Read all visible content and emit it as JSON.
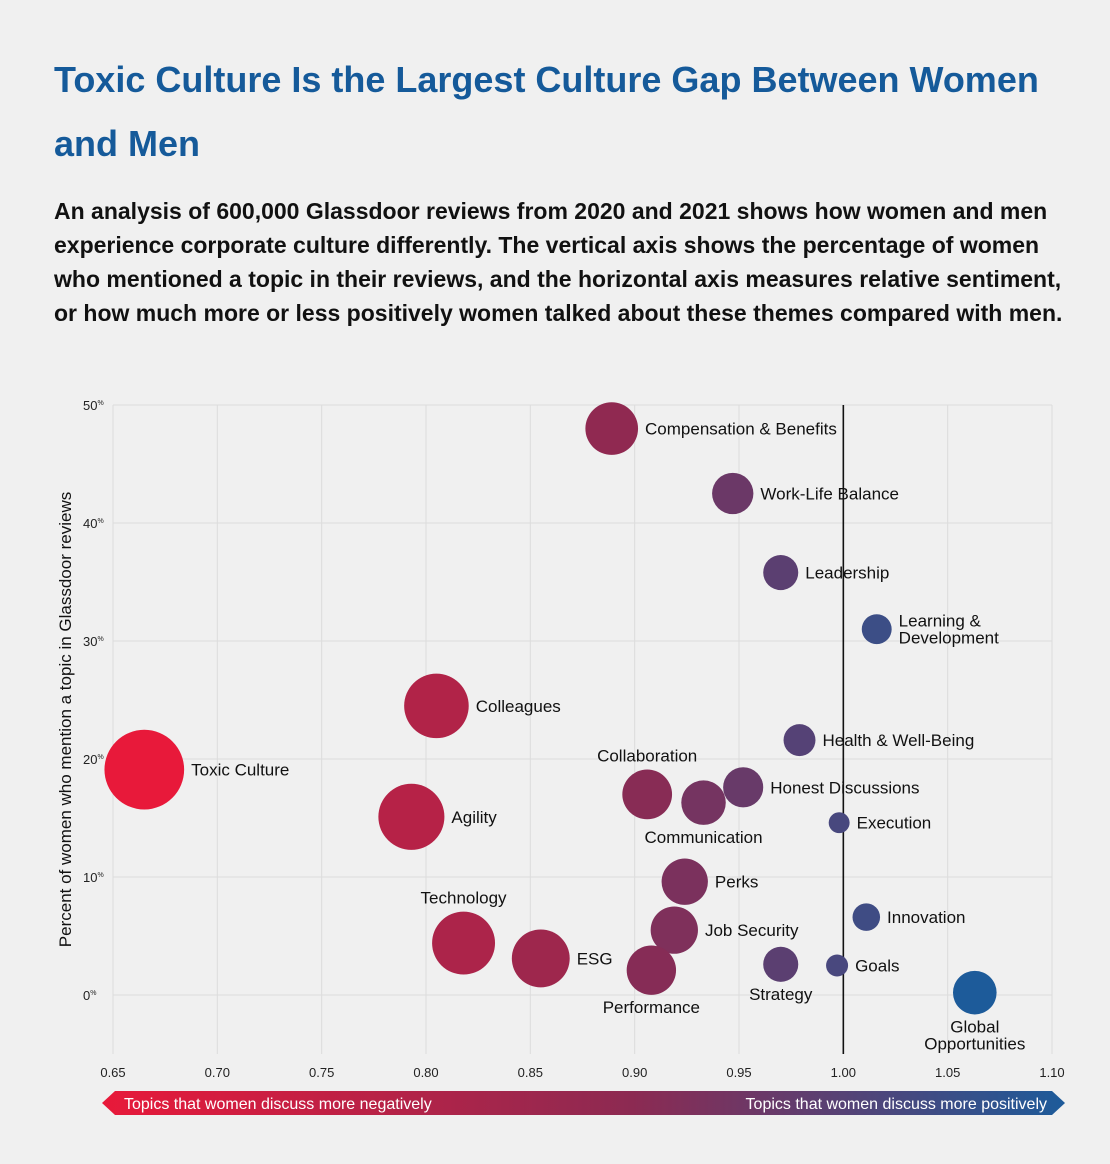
{
  "title": "Toxic Culture Is the Largest Culture Gap Between Women and Men",
  "subtitle": "An analysis of 600,000 Glassdoor reviews from 2020 and 2021 shows how women and men experience corporate culture differently. The vertical axis shows the percentage of women who mentioned a topic in their reviews, and the horizontal axis measures relative sentiment, or how much more or less positively women talked about these themes compared with men.",
  "chart_data": {
    "type": "scatter",
    "encoding": "bubble",
    "ylabel": "Percent of women who mention a topic in Glassdoor reviews",
    "xlim": [
      0.65,
      1.1
    ],
    "ylim": [
      -5,
      50
    ],
    "x_ticks": [
      0.65,
      0.7,
      0.75,
      0.8,
      0.85,
      0.9,
      0.95,
      1.0,
      1.05,
      1.1
    ],
    "x_tick_labels": [
      "0.65",
      "0.70",
      "0.75",
      "0.80",
      "0.85",
      "0.90",
      "0.95",
      "1.00",
      "1.05",
      "1.10"
    ],
    "y_ticks": [
      0,
      10,
      20,
      30,
      40,
      50
    ],
    "y_tick_labels": [
      "0",
      "10",
      "20",
      "30",
      "40",
      "50"
    ],
    "y_tick_unit": "%",
    "reference_line_x": 1.0,
    "grid": true,
    "arrow_left_label": "Topics that women discuss more negatively",
    "arrow_right_label": "Topics that women discuss more positively",
    "colors": {
      "negative": "#e8193a",
      "middle": "#8c2a52",
      "positive": "#1d5b9a",
      "title": "#155a9a"
    },
    "points": [
      {
        "label": "Compensation & Benefits",
        "x": 0.889,
        "y": 48.0,
        "gap": 0.111,
        "anchor": "right"
      },
      {
        "label": "Work-Life Balance",
        "x": 0.947,
        "y": 42.5,
        "gap": 0.053,
        "anchor": "right"
      },
      {
        "label": "Leadership",
        "x": 0.97,
        "y": 35.8,
        "gap": 0.03,
        "anchor": "right"
      },
      {
        "label": "Learning & Development",
        "lines": [
          "Learning &",
          "Development"
        ],
        "x": 1.016,
        "y": 31.0,
        "gap": 0.016,
        "anchor": "right"
      },
      {
        "label": "Colleagues",
        "x": 0.805,
        "y": 24.5,
        "gap": 0.195,
        "anchor": "right"
      },
      {
        "label": "Health & Well-Being",
        "x": 0.979,
        "y": 21.6,
        "gap": 0.021,
        "anchor": "right"
      },
      {
        "label": "Toxic Culture",
        "x": 0.665,
        "y": 19.1,
        "gap": 0.335,
        "anchor": "right"
      },
      {
        "label": "Collaboration",
        "x": 0.906,
        "y": 17.0,
        "gap": 0.094,
        "anchor": "above"
      },
      {
        "label": "Honest Discussions",
        "x": 0.952,
        "y": 17.6,
        "gap": 0.048,
        "anchor": "right"
      },
      {
        "label": "Communication",
        "x": 0.933,
        "y": 16.3,
        "gap": 0.067,
        "anchor": "below"
      },
      {
        "label": "Agility",
        "x": 0.793,
        "y": 15.1,
        "gap": 0.207,
        "anchor": "right"
      },
      {
        "label": "Execution",
        "x": 0.998,
        "y": 14.6,
        "gap": 0.002,
        "anchor": "right"
      },
      {
        "label": "Perks",
        "x": 0.924,
        "y": 9.6,
        "gap": 0.076,
        "anchor": "right"
      },
      {
        "label": "Innovation",
        "x": 1.011,
        "y": 6.6,
        "gap": 0.011,
        "anchor": "right"
      },
      {
        "label": "Technology",
        "x": 0.818,
        "y": 4.4,
        "gap": 0.182,
        "anchor": "above"
      },
      {
        "label": "Job Security",
        "x": 0.919,
        "y": 5.5,
        "gap": 0.081,
        "anchor": "right"
      },
      {
        "label": "ESG",
        "x": 0.855,
        "y": 3.1,
        "gap": 0.145,
        "anchor": "right"
      },
      {
        "label": "Strategy",
        "x": 0.97,
        "y": 2.6,
        "gap": 0.03,
        "anchor": "below"
      },
      {
        "label": "Goals",
        "x": 0.997,
        "y": 2.5,
        "gap": 0.003,
        "anchor": "right"
      },
      {
        "label": "Performance",
        "x": 0.908,
        "y": 2.1,
        "gap": 0.092,
        "anchor": "below"
      },
      {
        "label": "Global Opportunities",
        "lines": [
          "Global",
          "Opportunities"
        ],
        "x": 1.063,
        "y": 0.2,
        "gap": 0.063,
        "anchor": "below"
      }
    ]
  }
}
